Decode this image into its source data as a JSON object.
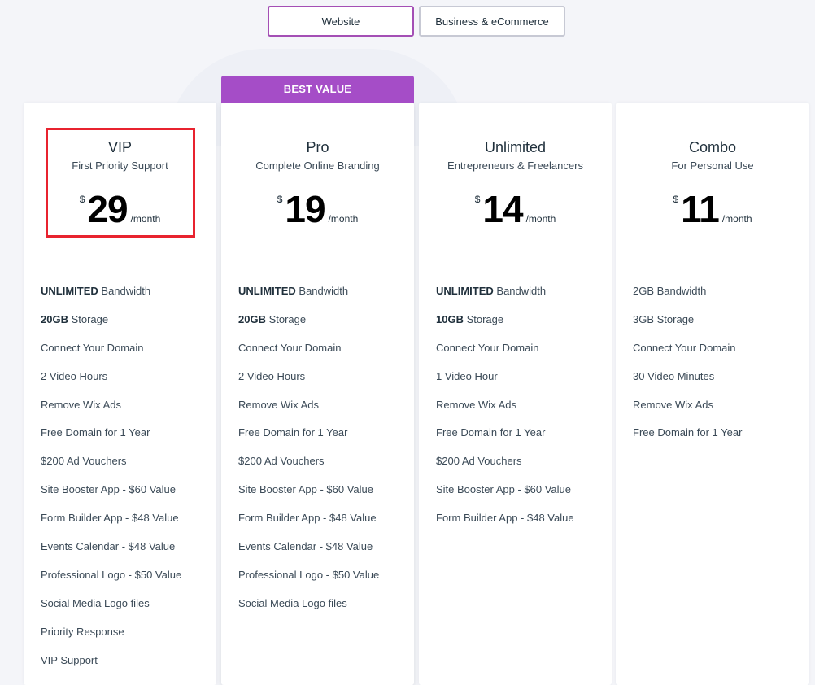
{
  "tabs": [
    {
      "label": "Website",
      "active": true
    },
    {
      "label": "Business & eCommerce",
      "active": false
    }
  ],
  "badge": "BEST VALUE",
  "colors": {
    "accent": "#a54dc7",
    "highlight": "#e8232f"
  },
  "plans": [
    {
      "name": "VIP",
      "subtitle": "First Priority Support",
      "currency": "$",
      "price": "29",
      "period": "/month",
      "features": [
        {
          "bold": "UNLIMITED",
          "text": " Bandwidth"
        },
        {
          "bold": "20GB",
          "text": " Storage"
        },
        {
          "bold": "",
          "text": "Connect Your Domain"
        },
        {
          "bold": "",
          "text": "2 Video Hours"
        },
        {
          "bold": "",
          "text": "Remove Wix Ads"
        },
        {
          "bold": "",
          "text": "Free Domain for 1 Year"
        },
        {
          "bold": "",
          "text": "$200 Ad Vouchers"
        },
        {
          "bold": "",
          "text": "Site Booster App - $60 Value"
        },
        {
          "bold": "",
          "text": "Form Builder App - $48 Value"
        },
        {
          "bold": "",
          "text": "Events Calendar - $48 Value"
        },
        {
          "bold": "",
          "text": "Professional Logo - $50 Value"
        },
        {
          "bold": "",
          "text": "Social Media Logo files"
        },
        {
          "bold": "",
          "text": "Priority Response"
        },
        {
          "bold": "",
          "text": "VIP Support"
        }
      ]
    },
    {
      "name": "Pro",
      "subtitle": "Complete Online Branding",
      "currency": "$",
      "price": "19",
      "period": "/month",
      "features": [
        {
          "bold": "UNLIMITED",
          "text": " Bandwidth"
        },
        {
          "bold": "20GB",
          "text": " Storage"
        },
        {
          "bold": "",
          "text": "Connect Your Domain"
        },
        {
          "bold": "",
          "text": "2 Video Hours"
        },
        {
          "bold": "",
          "text": "Remove Wix Ads"
        },
        {
          "bold": "",
          "text": "Free Domain for 1 Year"
        },
        {
          "bold": "",
          "text": "$200 Ad Vouchers"
        },
        {
          "bold": "",
          "text": "Site Booster App - $60 Value"
        },
        {
          "bold": "",
          "text": "Form Builder App - $48 Value"
        },
        {
          "bold": "",
          "text": "Events Calendar - $48 Value"
        },
        {
          "bold": "",
          "text": "Professional Logo - $50 Value"
        },
        {
          "bold": "",
          "text": "Social Media Logo files"
        }
      ]
    },
    {
      "name": "Unlimited",
      "subtitle": "Entrepreneurs & Freelancers",
      "currency": "$",
      "price": "14",
      "period": "/month",
      "features": [
        {
          "bold": "UNLIMITED",
          "text": " Bandwidth"
        },
        {
          "bold": "10GB",
          "text": " Storage"
        },
        {
          "bold": "",
          "text": "Connect Your Domain"
        },
        {
          "bold": "",
          "text": "1 Video Hour"
        },
        {
          "bold": "",
          "text": "Remove Wix Ads"
        },
        {
          "bold": "",
          "text": "Free Domain for 1 Year"
        },
        {
          "bold": "",
          "text": "$200 Ad Vouchers"
        },
        {
          "bold": "",
          "text": "Site Booster App - $60 Value"
        },
        {
          "bold": "",
          "text": "Form Builder App - $48 Value"
        }
      ]
    },
    {
      "name": "Combo",
      "subtitle": "For Personal Use",
      "currency": "$",
      "price": "11",
      "period": "/month",
      "features": [
        {
          "bold": "",
          "text": "2GB Bandwidth"
        },
        {
          "bold": "",
          "text": "3GB Storage"
        },
        {
          "bold": "",
          "text": "Connect Your Domain"
        },
        {
          "bold": "",
          "text": "30 Video Minutes"
        },
        {
          "bold": "",
          "text": "Remove Wix Ads"
        },
        {
          "bold": "",
          "text": "Free Domain for 1 Year"
        }
      ]
    }
  ]
}
